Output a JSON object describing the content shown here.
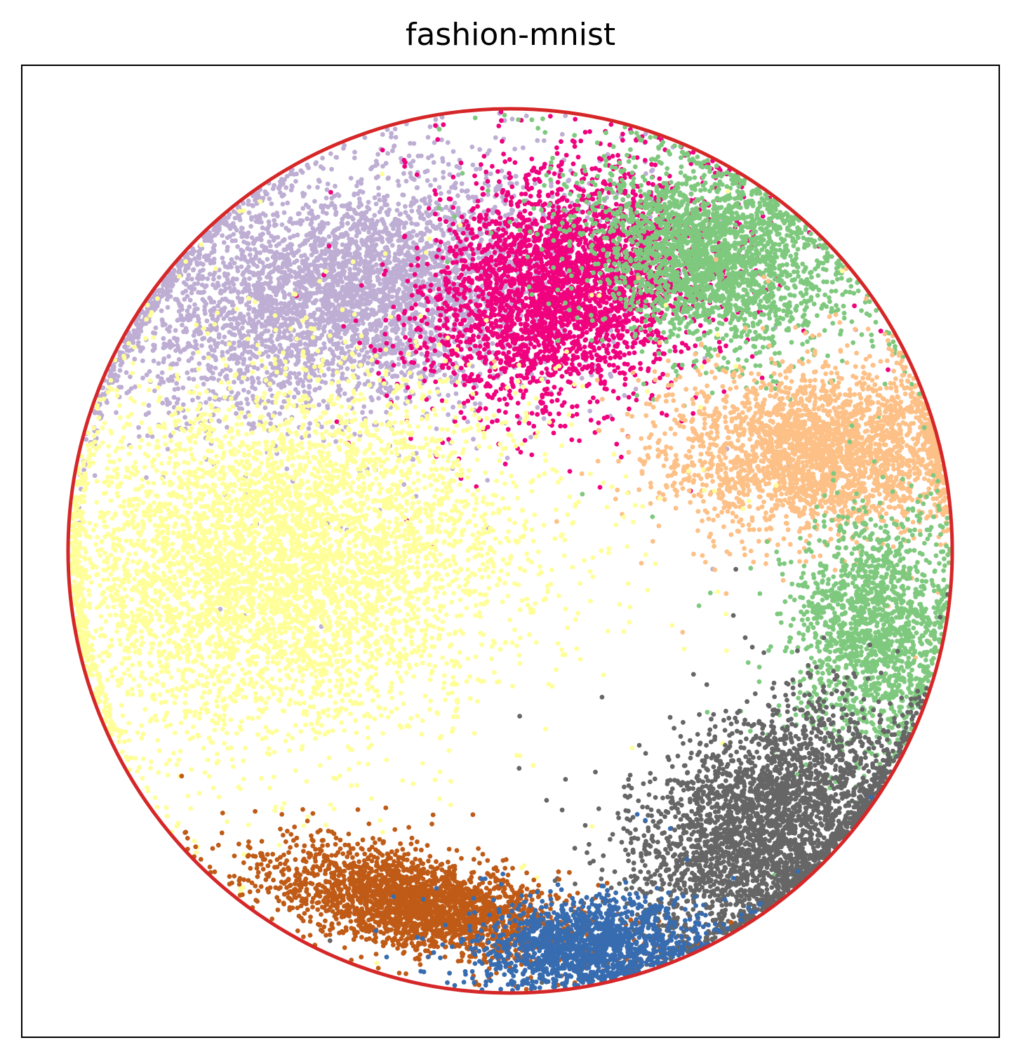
{
  "chart_data": {
    "type": "scatter",
    "title": "fashion-mnist",
    "xlabel": "",
    "ylabel": "",
    "xlim": [
      -1.05,
      1.05
    ],
    "ylim": [
      -1.05,
      1.05
    ],
    "grid": false,
    "ticks": "none",
    "boundary": {
      "shape": "circle",
      "center": [
        0,
        0
      ],
      "radius": 1.0,
      "color": "#d62728"
    },
    "series": [
      {
        "color": "#beaed4",
        "points_approx": 4500,
        "center": [
          -0.37,
          0.58
        ],
        "spread": [
          0.26,
          0.13
        ],
        "angle": 10
      },
      {
        "color": "#f0027f",
        "points_approx": 3500,
        "center": [
          0.13,
          0.6
        ],
        "spread": [
          0.12,
          0.16
        ],
        "angle": -70
      },
      {
        "color": "#7fc97f",
        "points_approx": 2500,
        "center": [
          0.45,
          0.67
        ],
        "spread": [
          0.14,
          0.1
        ],
        "angle": -20
      },
      {
        "color": "#fdc086",
        "points_approx": 2800,
        "center": [
          0.7,
          0.23
        ],
        "spread": [
          0.17,
          0.09
        ],
        "angle": 0
      },
      {
        "color": "#7fc97f",
        "points_approx": 1600,
        "center": [
          0.82,
          -0.18
        ],
        "spread": [
          0.09,
          0.13
        ],
        "angle": 0
      },
      {
        "color": "#ffff99",
        "points_approx": 5500,
        "center": [
          -0.52,
          -0.02
        ],
        "spread": [
          0.27,
          0.2
        ],
        "angle": 10
      },
      {
        "color": "#666666",
        "points_approx": 3200,
        "center": [
          0.58,
          -0.62
        ],
        "spread": [
          0.17,
          0.11
        ],
        "angle": 35
      },
      {
        "color": "#bf5b17",
        "points_approx": 2600,
        "center": [
          -0.2,
          -0.8
        ],
        "spread": [
          0.17,
          0.05
        ],
        "angle": -12
      },
      {
        "color": "#386cb0",
        "points_approx": 1500,
        "center": [
          0.17,
          -0.89
        ],
        "spread": [
          0.12,
          0.05
        ],
        "angle": 5
      }
    ]
  }
}
